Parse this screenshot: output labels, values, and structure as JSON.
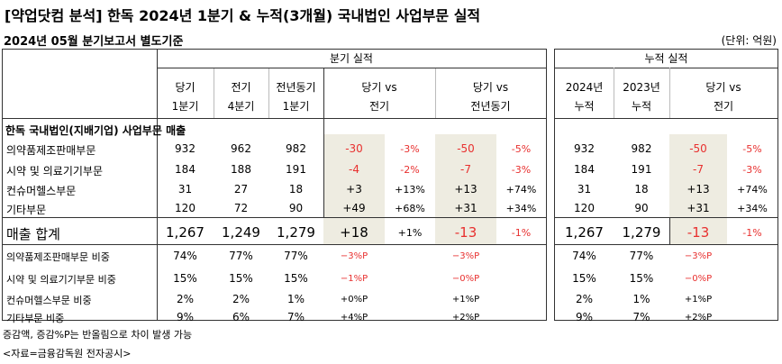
{
  "title": "[약업닷컴 분석] 한독 2024년 1분기 & 누적(3개월) 국내법인 사업부문 실적",
  "subtitle": "2024년 05월 분기보고서 별도기준",
  "unit": "(단위: 억원)",
  "left_group_header": "분기 실적",
  "right_group_header": "누적 실적",
  "left_columns": [
    {
      "line1": "당기",
      "line2": "1분기"
    },
    {
      "line1": "전기",
      "line2": "4분기"
    },
    {
      "line1": "전년동기",
      "line2": "1분기"
    },
    {
      "line1": "당기 vs",
      "line2": "전기"
    },
    {
      "line1": "당기 vs",
      "line2": "전년동기"
    }
  ],
  "right_columns": [
    {
      "line1": "2024년",
      "line2": "누적"
    },
    {
      "line1": "2023년",
      "line2": "누적"
    },
    {
      "line1": "당기 vs",
      "line2": "전기"
    }
  ],
  "section_title": "한독 국내법인(지배기업) 사업부문 매출",
  "rows": [
    {
      "label": "의약품제조판매부문",
      "q_cur": "932",
      "q_prev": "962",
      "q_yoy": "982",
      "vs_prev": "-30",
      "vs_prev_pct": "-3%",
      "vs_yoy": "-50",
      "vs_yoy_pct": "-5%",
      "c_2024": "932",
      "c_2023": "982",
      "c_vs": "-50",
      "c_vs_pct": "-5%"
    },
    {
      "label": "시약 및 의료기기부문",
      "q_cur": "184",
      "q_prev": "188",
      "q_yoy": "191",
      "vs_prev": "-4",
      "vs_prev_pct": "-2%",
      "vs_yoy": "-7",
      "vs_yoy_pct": "-3%",
      "c_2024": "184",
      "c_2023": "191",
      "c_vs": "-7",
      "c_vs_pct": "-3%"
    },
    {
      "label": "컨슈머헬스부문",
      "q_cur": "31",
      "q_prev": "27",
      "q_yoy": "18",
      "vs_prev": "+3",
      "vs_prev_pct": "+13%",
      "vs_yoy": "+13",
      "vs_yoy_pct": "+74%",
      "c_2024": "31",
      "c_2023": "18",
      "c_vs": "+13",
      "c_vs_pct": "+74%"
    },
    {
      "label": "기타부문",
      "q_cur": "120",
      "q_prev": "72",
      "q_yoy": "90",
      "vs_prev": "+49",
      "vs_prev_pct": "+68%",
      "vs_yoy": "+31",
      "vs_yoy_pct": "+34%",
      "c_2024": "120",
      "c_2023": "90",
      "c_vs": "+31",
      "c_vs_pct": "+34%"
    }
  ],
  "total": {
    "label": "매출 합계",
    "q_cur": "1,267",
    "q_prev": "1,249",
    "q_yoy": "1,279",
    "vs_prev": "+18",
    "vs_prev_pct": "+1%",
    "vs_yoy": "-13",
    "vs_yoy_pct": "-1%",
    "c_2024": "1,267",
    "c_2023": "1,279",
    "c_vs": "-13",
    "c_vs_pct": "-1%"
  },
  "ratios": [
    {
      "label": "의약품제조판매부문 비중",
      "q_cur": "74%",
      "q_prev": "77%",
      "q_yoy": "77%",
      "vs_prev": "−3%P",
      "vs_yoy": "−3%P",
      "c_2024": "74%",
      "c_2023": "77%",
      "c_vs": "−3%P"
    },
    {
      "label": "시약 및 의료기기부문 비중",
      "q_cur": "15%",
      "q_prev": "15%",
      "q_yoy": "15%",
      "vs_prev": "−1%P",
      "vs_yoy": "−0%P",
      "c_2024": "15%",
      "c_2023": "15%",
      "c_vs": "−0%P"
    },
    {
      "label": "컨슈머헬스부문 비중",
      "q_cur": "2%",
      "q_prev": "2%",
      "q_yoy": "1%",
      "vs_prev": "+0%P",
      "vs_yoy": "+1%P",
      "c_2024": "2%",
      "c_2023": "1%",
      "c_vs": "+1%P"
    },
    {
      "label": "기타부문 비중",
      "q_cur": "9%",
      "q_prev": "6%",
      "q_yoy": "7%",
      "vs_prev": "+4%P",
      "vs_yoy": "+2%P",
      "c_2024": "9%",
      "c_2023": "7%",
      "c_vs": "+2%P"
    }
  ],
  "footnotes": [
    "증감액, 증감%P는 반올림으로 차이 발생 가능",
    "<자료=금융감독원 전자공시>"
  ],
  "colors": {
    "negative": "#e8302f",
    "shade": "#eeece1",
    "border": "#333333"
  }
}
